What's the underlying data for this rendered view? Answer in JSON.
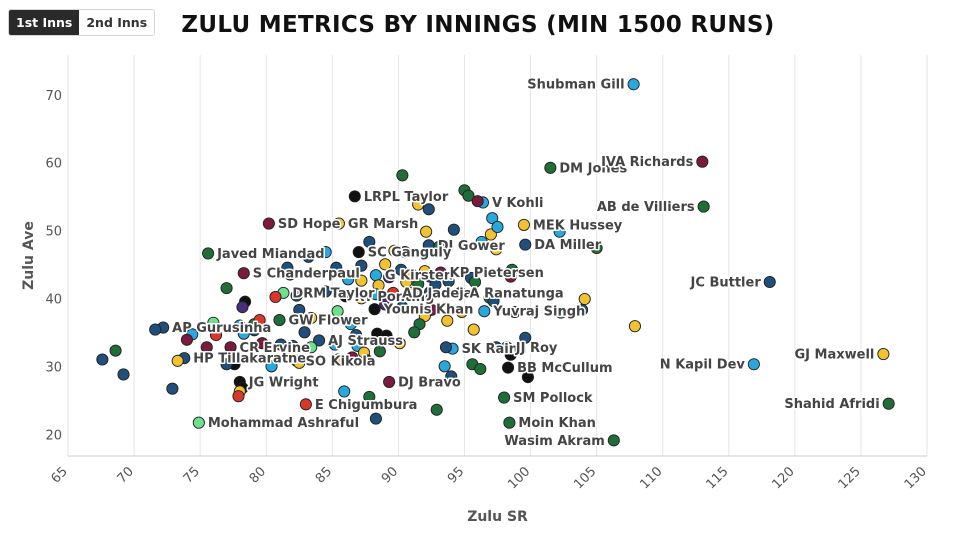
{
  "tabs": [
    {
      "label": "1st Inns",
      "active": true
    },
    {
      "label": "2nd Inns",
      "active": false
    }
  ],
  "colors": {
    "sky": "#29a8e0",
    "navy": "#1f4f7a",
    "green": "#1f6e3a",
    "black": "#111111",
    "maroon": "#7a1a3e",
    "gold": "#f3c230",
    "mint": "#6ce08a",
    "red": "#d9372a",
    "purple": "#4a2d7a",
    "outline": "#222222",
    "text": "#444444"
  },
  "chart_data": {
    "type": "scatter",
    "title": "ZULU METRICS BY INNINGS (MIN 1500 RUNS)",
    "xlabel": "Zulu SR",
    "ylabel": "Zulu Ave",
    "xlim": [
      65,
      130
    ],
    "ylim": [
      17,
      76
    ],
    "xticks": [
      65,
      70,
      75,
      80,
      85,
      90,
      95,
      100,
      105,
      110,
      115,
      120,
      125,
      130
    ],
    "yticks": [
      20,
      30,
      40,
      50,
      60,
      70
    ],
    "grid": "vertical",
    "points": [
      {
        "x": 107.8,
        "y": 71.7,
        "c": "sky",
        "label": "Shubman Gill"
      },
      {
        "x": 101.5,
        "y": 59.4,
        "c": "green",
        "label": "DM Jones"
      },
      {
        "x": 113.0,
        "y": 60.3,
        "c": "maroon",
        "label": "IVA Richards"
      },
      {
        "x": 113.1,
        "y": 53.7,
        "c": "green",
        "label": "AB de Villiers"
      },
      {
        "x": 86.7,
        "y": 55.2,
        "c": "black",
        "label": "LRPL Taylor"
      },
      {
        "x": 96.4,
        "y": 54.3,
        "c": "sky",
        "label": "V Kohli"
      },
      {
        "x": 80.2,
        "y": 51.2,
        "c": "maroon",
        "label": "SD Hope"
      },
      {
        "x": 85.5,
        "y": 51.2,
        "c": "gold",
        "label": "GR Marsh"
      },
      {
        "x": 99.5,
        "y": 51.0,
        "c": "gold",
        "label": "MEK Hussey"
      },
      {
        "x": 92.3,
        "y": 48.0,
        "c": "navy",
        "label": "DI Gower"
      },
      {
        "x": 99.6,
        "y": 48.1,
        "c": "navy",
        "label": "DA Miller"
      },
      {
        "x": 75.6,
        "y": 46.8,
        "c": "green",
        "label": "Javed Miandad"
      },
      {
        "x": 87.0,
        "y": 47.0,
        "c": "black",
        "label": "SC Ganguly"
      },
      {
        "x": 78.3,
        "y": 43.9,
        "c": "maroon",
        "label": "S Chanderpaul"
      },
      {
        "x": 88.3,
        "y": 43.6,
        "c": "sky",
        "label": "G Kirsten"
      },
      {
        "x": 93.2,
        "y": 44.0,
        "c": "maroon",
        "label": "KP Pietersen"
      },
      {
        "x": 118.1,
        "y": 42.6,
        "c": "navy",
        "label": "JC Buttler"
      },
      {
        "x": 86.0,
        "y": 40.5,
        "c": "black",
        "label": "RT Ponting"
      },
      {
        "x": 89.6,
        "y": 41.0,
        "c": "red",
        "label": "AD Jadeja"
      },
      {
        "x": 94.7,
        "y": 41.0,
        "c": "navy",
        "label": "A Ranatunga"
      },
      {
        "x": 81.3,
        "y": 41.0,
        "c": "mint",
        "label": "DRM Taylor"
      },
      {
        "x": 96.5,
        "y": 38.3,
        "c": "sky",
        "label": "Yuvraj Singh"
      },
      {
        "x": 81.0,
        "y": 37.0,
        "c": "green",
        "label": "GW Flower"
      },
      {
        "x": 88.2,
        "y": 38.6,
        "c": "black",
        "label": "Younis Khan"
      },
      {
        "x": 72.2,
        "y": 35.9,
        "c": "navy",
        "label": "AP Gurusinha"
      },
      {
        "x": 84.0,
        "y": 34.0,
        "c": "navy",
        "label": "AJ Strauss"
      },
      {
        "x": 77.3,
        "y": 33.0,
        "c": "maroon",
        "label": "CR Ervine"
      },
      {
        "x": 94.1,
        "y": 32.8,
        "c": "sky",
        "label": "SK Raina"
      },
      {
        "x": 98.2,
        "y": 33.0,
        "c": "sky",
        "label": "JJ Roy"
      },
      {
        "x": 126.7,
        "y": 32.0,
        "c": "gold",
        "label": "GJ Maxwell"
      },
      {
        "x": 73.8,
        "y": 31.4,
        "c": "navy",
        "label": "HP Tillakaratne"
      },
      {
        "x": 82.3,
        "y": 31.0,
        "c": "sky",
        "label": "SO Kikola"
      },
      {
        "x": 98.3,
        "y": 30.0,
        "c": "black",
        "label": "BB McCullum"
      },
      {
        "x": 116.9,
        "y": 30.5,
        "c": "sky",
        "label": "N Kapil Dev"
      },
      {
        "x": 78.0,
        "y": 27.9,
        "c": "black",
        "label": "JG Wright"
      },
      {
        "x": 89.3,
        "y": 27.9,
        "c": "maroon",
        "label": "DJ Bravo"
      },
      {
        "x": 83.0,
        "y": 24.6,
        "c": "red",
        "label": "E Chigumbura"
      },
      {
        "x": 98.0,
        "y": 25.6,
        "c": "green",
        "label": "SM Pollock"
      },
      {
        "x": 127.1,
        "y": 24.7,
        "c": "green",
        "label": "Shahid Afridi"
      },
      {
        "x": 74.9,
        "y": 21.9,
        "c": "mint",
        "label": "Mohammad Ashraful"
      },
      {
        "x": 98.4,
        "y": 21.9,
        "c": "green",
        "label": "Moin Khan"
      },
      {
        "x": 106.3,
        "y": 19.3,
        "c": "green",
        "label": "Wasim Akram"
      },
      {
        "x": 90.3,
        "y": 58.3,
        "c": "green"
      },
      {
        "x": 95.0,
        "y": 56.1,
        "c": "green"
      },
      {
        "x": 95.3,
        "y": 55.3,
        "c": "green"
      },
      {
        "x": 91.5,
        "y": 54.0,
        "c": "gold"
      },
      {
        "x": 92.3,
        "y": 53.3,
        "c": "navy"
      },
      {
        "x": 96.0,
        "y": 54.5,
        "c": "maroon"
      },
      {
        "x": 97.1,
        "y": 52.0,
        "c": "sky"
      },
      {
        "x": 97.0,
        "y": 49.6,
        "c": "gold"
      },
      {
        "x": 97.5,
        "y": 50.7,
        "c": "sky"
      },
      {
        "x": 102.2,
        "y": 50.0,
        "c": "sky"
      },
      {
        "x": 96.3,
        "y": 48.5,
        "c": "sky"
      },
      {
        "x": 97.4,
        "y": 47.4,
        "c": "gold"
      },
      {
        "x": 93.1,
        "y": 47.8,
        "c": "green"
      },
      {
        "x": 92.1,
        "y": 50.0,
        "c": "gold"
      },
      {
        "x": 94.2,
        "y": 50.3,
        "c": "navy"
      },
      {
        "x": 105.0,
        "y": 47.6,
        "c": "green"
      },
      {
        "x": 90.5,
        "y": 47.0,
        "c": "green"
      },
      {
        "x": 89.7,
        "y": 47.2,
        "c": "gold"
      },
      {
        "x": 87.8,
        "y": 48.5,
        "c": "navy"
      },
      {
        "x": 83.2,
        "y": 46.3,
        "c": "navy"
      },
      {
        "x": 84.5,
        "y": 47.0,
        "c": "sky"
      },
      {
        "x": 81.6,
        "y": 44.7,
        "c": "navy"
      },
      {
        "x": 85.3,
        "y": 44.7,
        "c": "navy"
      },
      {
        "x": 87.2,
        "y": 45.0,
        "c": "navy"
      },
      {
        "x": 89.0,
        "y": 45.2,
        "c": "gold"
      },
      {
        "x": 90.2,
        "y": 44.4,
        "c": "navy"
      },
      {
        "x": 91.1,
        "y": 43.6,
        "c": "gold"
      },
      {
        "x": 92.0,
        "y": 44.2,
        "c": "gold"
      },
      {
        "x": 92.4,
        "y": 43.4,
        "c": "navy"
      },
      {
        "x": 93.8,
        "y": 42.7,
        "c": "navy"
      },
      {
        "x": 95.5,
        "y": 43.2,
        "c": "navy"
      },
      {
        "x": 95.8,
        "y": 42.6,
        "c": "green"
      },
      {
        "x": 98.5,
        "y": 43.4,
        "c": "maroon"
      },
      {
        "x": 98.6,
        "y": 44.4,
        "c": "green"
      },
      {
        "x": 86.2,
        "y": 43.0,
        "c": "sky"
      },
      {
        "x": 87.2,
        "y": 42.8,
        "c": "gold"
      },
      {
        "x": 88.5,
        "y": 42.1,
        "c": "gold"
      },
      {
        "x": 89.3,
        "y": 43.3,
        "c": "purple"
      },
      {
        "x": 90.6,
        "y": 42.6,
        "c": "gold"
      },
      {
        "x": 91.5,
        "y": 42.3,
        "c": "green"
      },
      {
        "x": 92.8,
        "y": 42.2,
        "c": "navy"
      },
      {
        "x": 80.7,
        "y": 40.4,
        "c": "red"
      },
      {
        "x": 82.3,
        "y": 40.6,
        "c": "navy"
      },
      {
        "x": 84.5,
        "y": 41.2,
        "c": "navy"
      },
      {
        "x": 87.2,
        "y": 40.2,
        "c": "gold"
      },
      {
        "x": 88.3,
        "y": 40.8,
        "c": "sky"
      },
      {
        "x": 91.0,
        "y": 41.0,
        "c": "gold"
      },
      {
        "x": 92.4,
        "y": 41.1,
        "c": "navy"
      },
      {
        "x": 96.9,
        "y": 40.3,
        "c": "green"
      },
      {
        "x": 97.2,
        "y": 39.8,
        "c": "navy"
      },
      {
        "x": 104.1,
        "y": 40.1,
        "c": "gold"
      },
      {
        "x": 78.4,
        "y": 39.7,
        "c": "black"
      },
      {
        "x": 78.2,
        "y": 38.9,
        "c": "purple"
      },
      {
        "x": 82.5,
        "y": 38.5,
        "c": "navy"
      },
      {
        "x": 85.4,
        "y": 38.3,
        "c": "mint"
      },
      {
        "x": 89.0,
        "y": 39.3,
        "c": "purple"
      },
      {
        "x": 90.3,
        "y": 38.9,
        "c": "navy"
      },
      {
        "x": 92.5,
        "y": 38.5,
        "c": "maroon"
      },
      {
        "x": 92.0,
        "y": 37.6,
        "c": "gold"
      },
      {
        "x": 94.8,
        "y": 38.2,
        "c": "gold"
      },
      {
        "x": 98.8,
        "y": 38.2,
        "c": "navy"
      },
      {
        "x": 102.3,
        "y": 38.1,
        "c": "sky"
      },
      {
        "x": 103.9,
        "y": 38.5,
        "c": "navy"
      },
      {
        "x": 107.9,
        "y": 36.1,
        "c": "gold"
      },
      {
        "x": 77.0,
        "y": 41.7,
        "c": "green"
      },
      {
        "x": 81.8,
        "y": 43.7,
        "c": "green"
      },
      {
        "x": 76.0,
        "y": 36.6,
        "c": "mint"
      },
      {
        "x": 78.0,
        "y": 36.2,
        "c": "sky"
      },
      {
        "x": 79.1,
        "y": 36.4,
        "c": "green"
      },
      {
        "x": 79.5,
        "y": 37.0,
        "c": "red"
      },
      {
        "x": 83.4,
        "y": 37.3,
        "c": "gold"
      },
      {
        "x": 86.4,
        "y": 36.4,
        "c": "sky"
      },
      {
        "x": 91.6,
        "y": 36.4,
        "c": "green"
      },
      {
        "x": 93.7,
        "y": 36.9,
        "c": "gold"
      },
      {
        "x": 95.7,
        "y": 35.6,
        "c": "gold"
      },
      {
        "x": 71.6,
        "y": 35.6,
        "c": "navy"
      },
      {
        "x": 74.4,
        "y": 34.9,
        "c": "sky"
      },
      {
        "x": 74.0,
        "y": 34.1,
        "c": "maroon"
      },
      {
        "x": 76.2,
        "y": 34.8,
        "c": "red"
      },
      {
        "x": 78.3,
        "y": 35.0,
        "c": "sky"
      },
      {
        "x": 79.1,
        "y": 35.5,
        "c": "navy"
      },
      {
        "x": 82.9,
        "y": 35.2,
        "c": "navy"
      },
      {
        "x": 86.8,
        "y": 34.8,
        "c": "navy"
      },
      {
        "x": 88.4,
        "y": 35.0,
        "c": "black"
      },
      {
        "x": 89.1,
        "y": 34.7,
        "c": "black"
      },
      {
        "x": 91.2,
        "y": 35.2,
        "c": "green"
      },
      {
        "x": 99.6,
        "y": 34.4,
        "c": "navy"
      },
      {
        "x": 75.5,
        "y": 33.0,
        "c": "maroon"
      },
      {
        "x": 79.7,
        "y": 33.6,
        "c": "maroon"
      },
      {
        "x": 81.1,
        "y": 33.4,
        "c": "navy"
      },
      {
        "x": 82.0,
        "y": 33.2,
        "c": "navy"
      },
      {
        "x": 83.4,
        "y": 33.0,
        "c": "mint"
      },
      {
        "x": 85.2,
        "y": 33.4,
        "c": "sky"
      },
      {
        "x": 86.9,
        "y": 33.2,
        "c": "sky"
      },
      {
        "x": 87.4,
        "y": 32.2,
        "c": "gold"
      },
      {
        "x": 88.6,
        "y": 32.4,
        "c": "green"
      },
      {
        "x": 90.1,
        "y": 33.6,
        "c": "gold"
      },
      {
        "x": 93.6,
        "y": 33.0,
        "c": "navy"
      },
      {
        "x": 97.4,
        "y": 33.0,
        "c": "navy"
      },
      {
        "x": 68.6,
        "y": 32.5,
        "c": "green"
      },
      {
        "x": 73.3,
        "y": 31.0,
        "c": "gold"
      },
      {
        "x": 75.3,
        "y": 31.5,
        "c": "black"
      },
      {
        "x": 77.6,
        "y": 30.5,
        "c": "black"
      },
      {
        "x": 80.4,
        "y": 30.2,
        "c": "sky"
      },
      {
        "x": 82.5,
        "y": 30.7,
        "c": "gold"
      },
      {
        "x": 85.4,
        "y": 31.2,
        "c": "gold"
      },
      {
        "x": 86.5,
        "y": 31.5,
        "c": "maroon"
      },
      {
        "x": 87.6,
        "y": 31.1,
        "c": "black"
      },
      {
        "x": 93.5,
        "y": 30.2,
        "c": "sky"
      },
      {
        "x": 95.6,
        "y": 30.5,
        "c": "green"
      },
      {
        "x": 96.2,
        "y": 29.8,
        "c": "green"
      },
      {
        "x": 98.5,
        "y": 31.9,
        "c": "black"
      },
      {
        "x": 67.6,
        "y": 31.2,
        "c": "navy"
      },
      {
        "x": 69.2,
        "y": 29.0,
        "c": "navy"
      },
      {
        "x": 77.0,
        "y": 30.5,
        "c": "navy"
      },
      {
        "x": 78.2,
        "y": 27.0,
        "c": "black"
      },
      {
        "x": 78.0,
        "y": 26.5,
        "c": "gold"
      },
      {
        "x": 99.8,
        "y": 28.6,
        "c": "black"
      },
      {
        "x": 94.0,
        "y": 28.7,
        "c": "navy"
      },
      {
        "x": 72.9,
        "y": 26.9,
        "c": "navy"
      },
      {
        "x": 77.9,
        "y": 25.8,
        "c": "red"
      },
      {
        "x": 85.9,
        "y": 26.5,
        "c": "sky"
      },
      {
        "x": 87.8,
        "y": 25.7,
        "c": "green"
      },
      {
        "x": 92.9,
        "y": 23.8,
        "c": "green"
      },
      {
        "x": 88.3,
        "y": 22.5,
        "c": "navy"
      }
    ]
  }
}
